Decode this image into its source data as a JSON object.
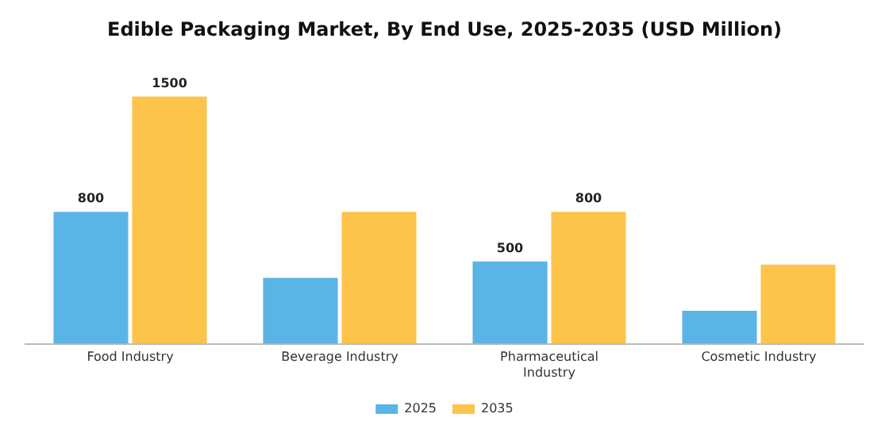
{
  "chart_data": {
    "type": "bar",
    "title": "Edible Packaging Market, By End Use, 2025-2035 (USD Million)",
    "categories": [
      "Food Industry",
      "Beverage Industry",
      "Pharmaceutical Industry",
      "Cosmetic Industry"
    ],
    "series": [
      {
        "name": "2025",
        "color": "#5ab4e5",
        "values": [
          800,
          400,
          500,
          200
        ],
        "value_labels": [
          "800",
          null,
          "500",
          null
        ]
      },
      {
        "name": "2035",
        "color": "#fcc44a",
        "values": [
          1500,
          800,
          800,
          480
        ],
        "value_labels": [
          "1500",
          null,
          "800",
          null
        ]
      }
    ],
    "legend": "bottom",
    "grid": false
  }
}
